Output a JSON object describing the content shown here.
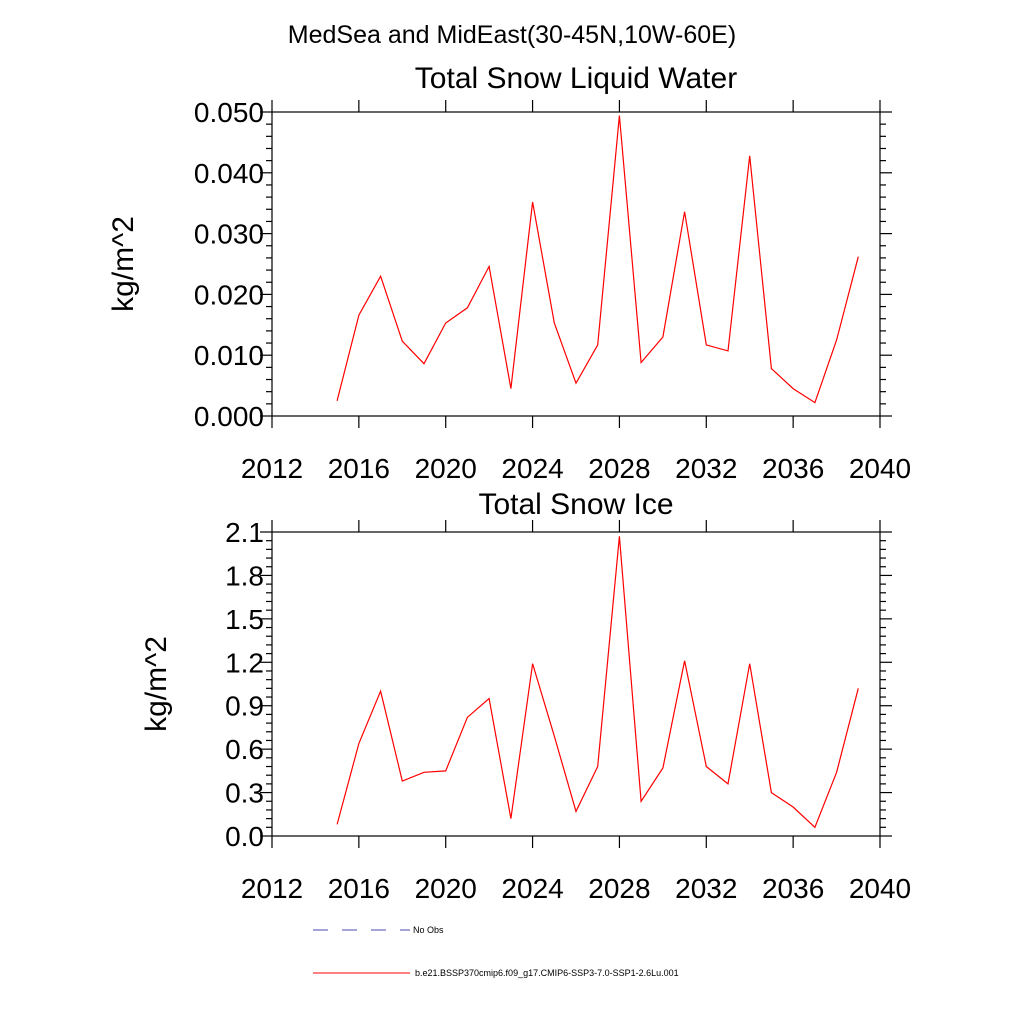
{
  "figure": {
    "suptitle": "MedSea and MidEast(30-45N,10W-60E)"
  },
  "chart_data": [
    {
      "type": "line",
      "title": "Total Snow Liquid Water",
      "xlabel": "",
      "ylabel": "kg/m^2",
      "xlim": [
        2012,
        2040
      ],
      "ylim": [
        0.0,
        0.05
      ],
      "x_ticks": [
        2012,
        2016,
        2020,
        2024,
        2028,
        2032,
        2036,
        2040
      ],
      "x_tick_labels": [
        "2012",
        "2016",
        "2020",
        "2024",
        "2028",
        "2032",
        "2036",
        "2040"
      ],
      "y_ticks": [
        0.0,
        0.01,
        0.02,
        0.03,
        0.04,
        0.05
      ],
      "y_tick_labels": [
        "0.000",
        "0.010",
        "0.020",
        "0.030",
        "0.040",
        "0.050"
      ],
      "grid": false,
      "x": [
        2015,
        2016,
        2017,
        2018,
        2019,
        2020,
        2021,
        2022,
        2023,
        2024,
        2025,
        2026,
        2027,
        2028,
        2029,
        2030,
        2031,
        2032,
        2033,
        2034,
        2035,
        2036,
        2037,
        2038,
        2039
      ],
      "series": [
        {
          "name": "b.e21.BSSP370cmip6.f09_g17.CMIP6-SSP3-7.0-SSP1-2.6Lu.001",
          "color": "#ff0000",
          "values": [
            0.0025,
            0.0166,
            0.023,
            0.0123,
            0.0086,
            0.0153,
            0.0178,
            0.0246,
            0.0045,
            0.0352,
            0.0153,
            0.0054,
            0.0117,
            0.0494,
            0.0088,
            0.013,
            0.0336,
            0.0117,
            0.0107,
            0.0428,
            0.0078,
            0.0045,
            0.0022,
            0.0125,
            0.0262
          ]
        }
      ]
    },
    {
      "type": "line",
      "title": "Total Snow Ice",
      "xlabel": "",
      "ylabel": "kg/m^2",
      "xlim": [
        2012,
        2040
      ],
      "ylim": [
        0.0,
        2.1
      ],
      "x_ticks": [
        2012,
        2016,
        2020,
        2024,
        2028,
        2032,
        2036,
        2040
      ],
      "x_tick_labels": [
        "2012",
        "2016",
        "2020",
        "2024",
        "2028",
        "2032",
        "2036",
        "2040"
      ],
      "y_ticks": [
        0.0,
        0.3,
        0.6,
        0.9,
        1.2,
        1.5,
        1.8,
        2.1
      ],
      "y_tick_labels": [
        "0.0",
        "0.3",
        "0.6",
        "0.9",
        "1.2",
        "1.5",
        "1.8",
        "2.1"
      ],
      "grid": false,
      "x": [
        2015,
        2016,
        2017,
        2018,
        2019,
        2020,
        2021,
        2022,
        2023,
        2024,
        2025,
        2026,
        2027,
        2028,
        2029,
        2030,
        2031,
        2032,
        2033,
        2034,
        2035,
        2036,
        2037,
        2038,
        2039
      ],
      "series": [
        {
          "name": "b.e21.BSSP370cmip6.f09_g17.CMIP6-SSP3-7.0-SSP1-2.6Lu.001",
          "color": "#ff0000",
          "values": [
            0.08,
            0.64,
            1.0,
            0.38,
            0.44,
            0.45,
            0.82,
            0.95,
            0.12,
            1.19,
            0.69,
            0.17,
            0.48,
            2.07,
            0.24,
            0.47,
            1.21,
            0.48,
            0.36,
            1.19,
            0.3,
            0.2,
            0.06,
            0.44,
            1.02
          ]
        }
      ]
    }
  ],
  "legend": {
    "placement": "bottom",
    "entries": [
      {
        "label": "No Obs",
        "color": "#4a4ab0",
        "style": "dashed"
      },
      {
        "label": "b.e21.BSSP370cmip6.f09_g17.CMIP6-SSP3-7.0-SSP1-2.6Lu.001",
        "color": "#ff0000",
        "style": "solid"
      }
    ]
  }
}
